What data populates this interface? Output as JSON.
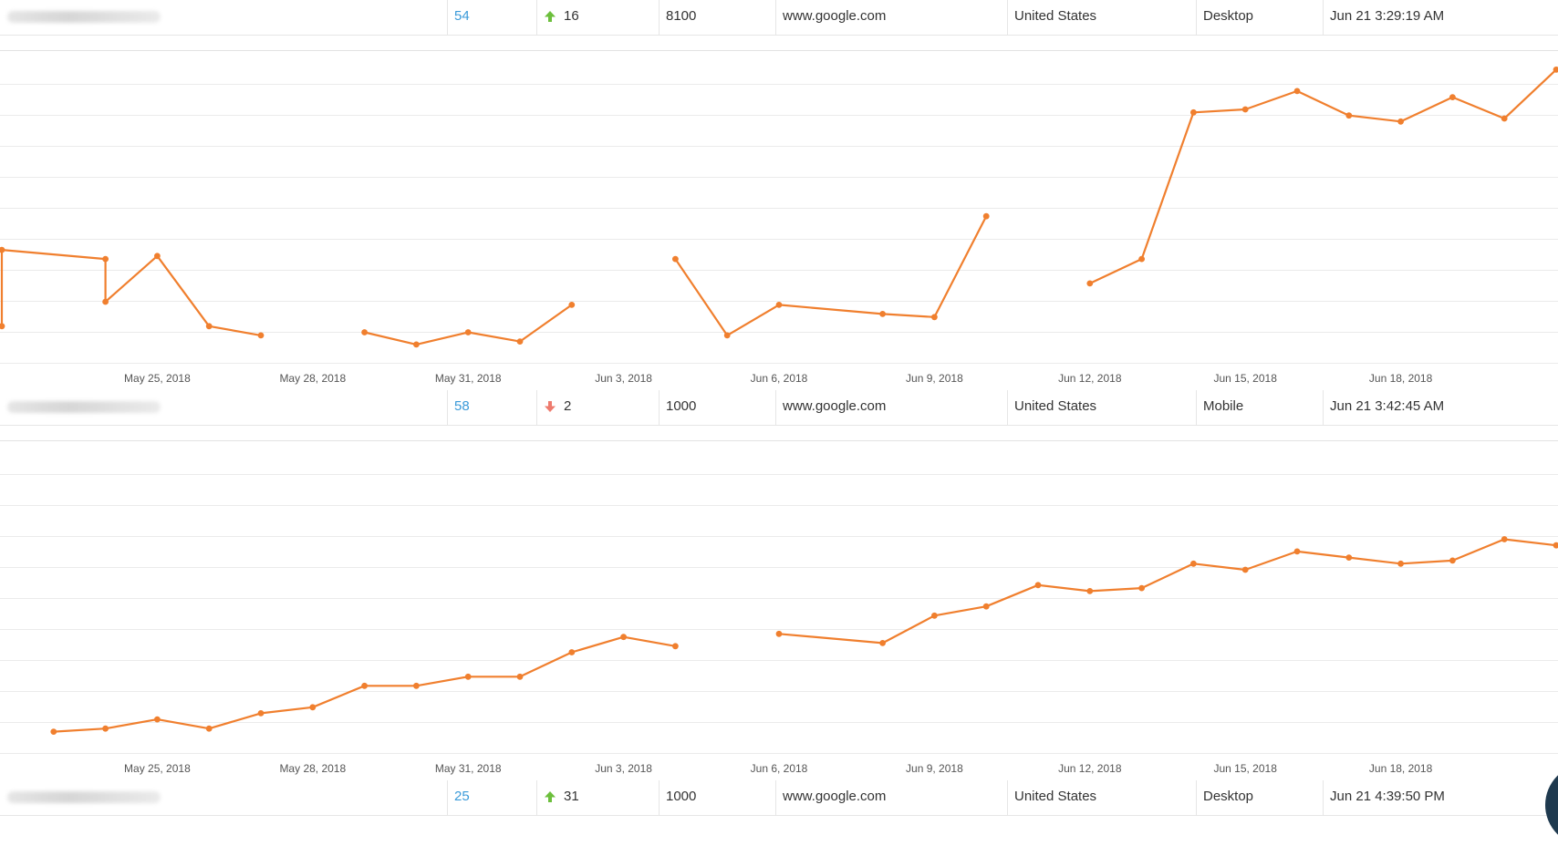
{
  "rows": [
    {
      "keyword_label": "",
      "rank": "54",
      "change_direction": "up",
      "change_value": "16",
      "search_volume": "8100",
      "search_engine": "www.google.com",
      "country": "United States",
      "device": "Desktop",
      "updated": "Jun 21 3:29:19 AM"
    },
    {
      "keyword_label": "",
      "rank": "58",
      "change_direction": "down",
      "change_value": "2",
      "search_volume": "1000",
      "search_engine": "www.google.com",
      "country": "United States",
      "device": "Mobile",
      "updated": "Jun 21 3:42:45 AM"
    },
    {
      "keyword_label": "",
      "rank": "25",
      "change_direction": "up",
      "change_value": "31",
      "search_volume": "1000",
      "search_engine": "www.google.com",
      "country": "United States",
      "device": "Desktop",
      "updated": "Jun 21 4:39:50 PM"
    }
  ],
  "colors": {
    "line": "#f07f2e",
    "up_arrow": "#6cbf3c",
    "down_arrow": "#ee7b6e",
    "rank_link": "#3a9ad9",
    "grid": "#ebebeb"
  },
  "icons": {
    "up": "arrow-up-icon",
    "down": "arrow-down-icon"
  },
  "chart_data": [
    {
      "type": "line",
      "title": "",
      "xlabel": "",
      "ylabel": "",
      "y_axis_labels_visible": false,
      "grid": true,
      "y_reversed": true,
      "ylim": [
        100,
        0
      ],
      "xlim": [
        "2018-05-22",
        "2018-06-21"
      ],
      "x_tick_labels": [
        "May 25, 2018",
        "May 28, 2018",
        "May 31, 2018",
        "Jun 3, 2018",
        "Jun 6, 2018",
        "Jun 9, 2018",
        "Jun 12, 2018",
        "Jun 15, 2018",
        "Jun 18, 2018"
      ],
      "x_tick_dates": [
        "2018-05-25",
        "2018-05-28",
        "2018-05-31",
        "2018-06-03",
        "2018-06-06",
        "2018-06-09",
        "2018-06-12",
        "2018-06-15",
        "2018-06-18"
      ],
      "series": [
        {
          "segments": [
            [
              [
                "2018-05-22",
                88
              ],
              [
                "2018-05-22",
                63
              ],
              [
                "2018-05-24",
                66
              ],
              [
                "2018-05-24",
                80
              ],
              [
                "2018-05-25",
                65
              ],
              [
                "2018-05-26",
                88
              ],
              [
                "2018-05-27",
                91
              ]
            ],
            [
              [
                "2018-05-29",
                90
              ],
              [
                "2018-05-30",
                94
              ],
              [
                "2018-05-31",
                90
              ],
              [
                "2018-06-01",
                93
              ],
              [
                "2018-06-02",
                81
              ]
            ],
            [
              [
                "2018-06-04",
                66
              ],
              [
                "2018-06-05",
                91
              ],
              [
                "2018-06-06",
                81
              ],
              [
                "2018-06-08",
                84
              ],
              [
                "2018-06-09",
                85
              ],
              [
                "2018-06-10",
                52
              ]
            ],
            [
              [
                "2018-06-12",
                74
              ],
              [
                "2018-06-13",
                66
              ],
              [
                "2018-06-14",
                18
              ],
              [
                "2018-06-15",
                17
              ],
              [
                "2018-06-16",
                11
              ],
              [
                "2018-06-17",
                19
              ],
              [
                "2018-06-18",
                21
              ],
              [
                "2018-06-19",
                13
              ],
              [
                "2018-06-20",
                20
              ],
              [
                "2018-06-21",
                4
              ]
            ]
          ]
        }
      ]
    },
    {
      "type": "line",
      "title": "",
      "xlabel": "",
      "ylabel": "",
      "y_axis_labels_visible": false,
      "grid": true,
      "y_reversed": true,
      "ylim": [
        100,
        0
      ],
      "xlim": [
        "2018-05-22",
        "2018-06-21"
      ],
      "x_tick_labels": [
        "May 25, 2018",
        "May 28, 2018",
        "May 31, 2018",
        "Jun 3, 2018",
        "Jun 6, 2018",
        "Jun 9, 2018",
        "Jun 12, 2018",
        "Jun 15, 2018",
        "Jun 18, 2018"
      ],
      "x_tick_dates": [
        "2018-05-25",
        "2018-05-28",
        "2018-05-31",
        "2018-06-03",
        "2018-06-06",
        "2018-06-09",
        "2018-06-12",
        "2018-06-15",
        "2018-06-18"
      ],
      "series": [
        {
          "segments": [
            [
              [
                "2018-05-23",
                93
              ],
              [
                "2018-05-24",
                92
              ],
              [
                "2018-05-25",
                89
              ],
              [
                "2018-05-26",
                92
              ],
              [
                "2018-05-27",
                87
              ],
              [
                "2018-05-28",
                85
              ],
              [
                "2018-05-29",
                78
              ],
              [
                "2018-05-30",
                78
              ],
              [
                "2018-05-31",
                75
              ],
              [
                "2018-06-01",
                75
              ],
              [
                "2018-06-02",
                67
              ],
              [
                "2018-06-03",
                62
              ],
              [
                "2018-06-04",
                65
              ]
            ],
            [
              [
                "2018-06-06",
                61
              ],
              [
                "2018-06-08",
                64
              ],
              [
                "2018-06-09",
                55
              ],
              [
                "2018-06-10",
                52
              ],
              [
                "2018-06-11",
                45
              ],
              [
                "2018-06-12",
                47
              ],
              [
                "2018-06-13",
                46
              ],
              [
                "2018-06-14",
                38
              ],
              [
                "2018-06-15",
                40
              ],
              [
                "2018-06-16",
                34
              ],
              [
                "2018-06-17",
                36
              ],
              [
                "2018-06-18",
                38
              ],
              [
                "2018-06-19",
                37
              ],
              [
                "2018-06-20",
                30
              ],
              [
                "2018-06-21",
                32
              ]
            ]
          ]
        }
      ]
    }
  ]
}
